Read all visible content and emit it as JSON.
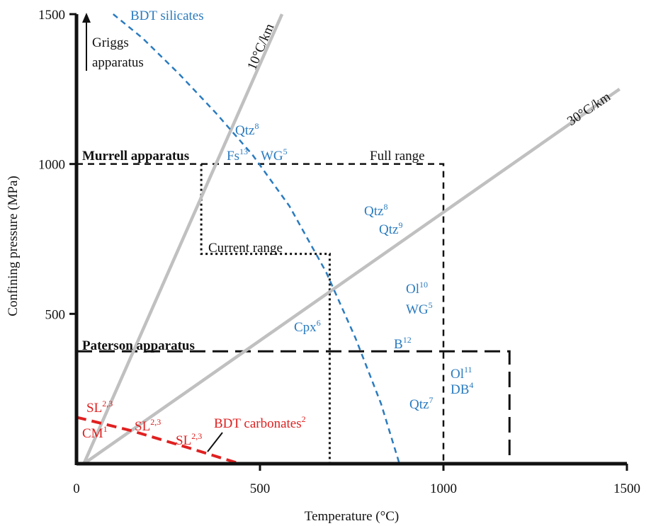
{
  "chart_data": {
    "type": "line",
    "xlabel": "Temperature (°C)",
    "ylabel": "Confining pressure (MPa)",
    "xlim": [
      0,
      1500
    ],
    "ylim": [
      0,
      1500
    ],
    "xticks": [
      "0",
      "500",
      "1000",
      "1500"
    ],
    "yticks": [
      "500",
      "1000",
      "1500"
    ],
    "colors": {
      "grey": "#c0c0c0",
      "blue": "#2a7bbf",
      "red": "#e02020",
      "black": "#111111"
    },
    "series": [
      {
        "name": "10°C/km",
        "style": "solid-grey",
        "x": [
          20,
          560
        ],
        "y": [
          0,
          1500
        ]
      },
      {
        "name": "30°C/km",
        "style": "solid-grey",
        "x": [
          20,
          1480
        ],
        "y": [
          0,
          1250
        ]
      },
      {
        "name": "BDT silicates",
        "style": "dashed-blue",
        "x": [
          100,
          180,
          280,
          380,
          480,
          580,
          680,
          760,
          830,
          880
        ],
        "y": [
          1500,
          1420,
          1300,
          1170,
          1030,
          860,
          640,
          420,
          200,
          0
        ]
      },
      {
        "name": "BDT carbonates",
        "style": "dashed-red",
        "x": [
          0,
          150,
          300,
          445
        ],
        "y": [
          155,
          110,
          55,
          0
        ]
      }
    ],
    "regions": [
      {
        "label": "Full range",
        "style": "dashed-black",
        "x": [
          0,
          1000,
          1000
        ],
        "y": [
          1000,
          1000,
          0
        ]
      },
      {
        "label": "Current range",
        "style": "dotted-black",
        "x": [
          340,
          340,
          690,
          690
        ],
        "y": [
          1000,
          700,
          700,
          0
        ]
      },
      {
        "label": "Paterson apparatus",
        "style": "longdash-black",
        "x": [
          0,
          1180,
          1180
        ],
        "y": [
          375,
          375,
          0
        ]
      }
    ],
    "annotations": {
      "griggs_line1": "Griggs",
      "griggs_line2": "apparatus",
      "murrell": "Murrell apparatus",
      "paterson": "Paterson apparatus",
      "full_range": "Full range",
      "current_range": "Current range",
      "grad10": "10°C/km",
      "grad30": "30°C/km",
      "bdt_silicates": "BDT silicates",
      "bdt_carbonates": "BDT carbonates",
      "bdt_carbonates_sup": "2",
      "blue_points": [
        {
          "text": "Qtz",
          "sup": "8"
        },
        {
          "text": "Fs",
          "sup": "13"
        },
        {
          "text": "WG",
          "sup": "5"
        },
        {
          "text": "Qtz",
          "sup": "8"
        },
        {
          "text": "Qtz",
          "sup": "9"
        },
        {
          "text": "Ol",
          "sup": "10"
        },
        {
          "text": "WG",
          "sup": "5"
        },
        {
          "text": "Cpx",
          "sup": "6"
        },
        {
          "text": "B",
          "sup": "12"
        },
        {
          "text": "Ol",
          "sup": "11"
        },
        {
          "text": "DB",
          "sup": "4"
        },
        {
          "text": "Qtz",
          "sup": "7"
        }
      ],
      "red_points": [
        {
          "text": "SL",
          "sup": "2,3"
        },
        {
          "text": "CM",
          "sup": "1"
        },
        {
          "text": "SL",
          "sup": "2,3"
        },
        {
          "text": "SL",
          "sup": "2,3"
        }
      ]
    }
  }
}
